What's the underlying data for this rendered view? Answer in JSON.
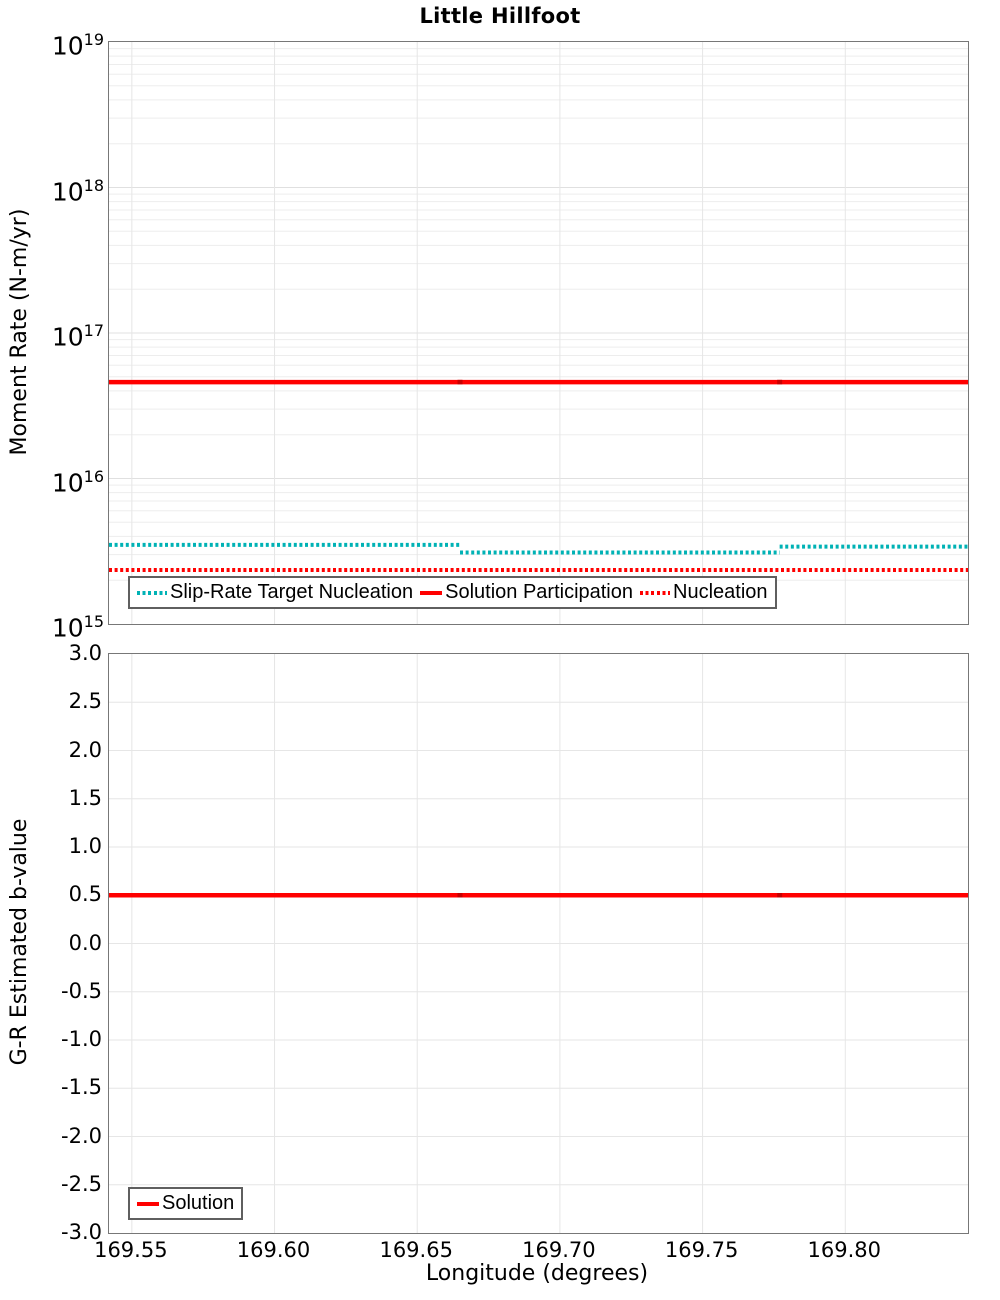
{
  "title": "Little Hillfoot",
  "colors": {
    "red": "#ff0000",
    "red_join_mark": "#c80000",
    "teal": "#00b2b5",
    "grid_minor": "#ededed",
    "grid_major": "#e0e0e0",
    "grid_vertical": "#e6e6e6",
    "axis_border": "#777777",
    "legend_border": "#5f5f5f"
  },
  "chart_data": [
    {
      "id": "moment-rate",
      "type": "line",
      "title": "Little Hillfoot",
      "ylabel": "Moment Rate (N-m/yr)",
      "yscale": "log",
      "ylim": [
        1000000000000000.0,
        1e+19
      ],
      "ytick_base": "10",
      "ytick_exponents": [
        19,
        18,
        17,
        16,
        15
      ],
      "xlim": [
        169.542,
        169.843
      ],
      "xticks": [
        169.55,
        169.6,
        169.65,
        169.7,
        169.75,
        169.8
      ],
      "grid": true,
      "legend_position": "bottom-left",
      "series": [
        {
          "name": "Slip-Rate Target Nucleation",
          "color": "#00b2b5",
          "style": "dotted",
          "segments": [
            {
              "x0": 169.542,
              "x1": 169.665,
              "y": 3500000000000000.0
            },
            {
              "x0": 169.665,
              "x1": 169.777,
              "y": 3100000000000000.0
            },
            {
              "x0": 169.777,
              "x1": 169.843,
              "y": 3400000000000000.0
            }
          ]
        },
        {
          "name": "Solution Participation",
          "color": "#ff0000",
          "style": "solid",
          "segments": [
            {
              "x0": 169.542,
              "x1": 169.843,
              "y": 4.6e+16
            }
          ],
          "joint_marks": [
            169.665,
            169.777
          ]
        },
        {
          "name": "Nucleation",
          "color": "#ff0000",
          "style": "dotted",
          "segments": [
            {
              "x0": 169.542,
              "x1": 169.843,
              "y": 2350000000000000.0
            }
          ]
        }
      ]
    },
    {
      "id": "b-value",
      "type": "line",
      "ylabel": "G-R Estimated b-value",
      "xlabel": "Longitude (degrees)",
      "yscale": "linear",
      "ylim": [
        -3.0,
        3.0
      ],
      "yticks": [
        3.0,
        2.5,
        2.0,
        1.5,
        1.0,
        0.5,
        0.0,
        -0.5,
        -1.0,
        -1.5,
        -2.0,
        -2.5,
        -3.0
      ],
      "ytick_labels": [
        "3.0",
        "2.5",
        "2.0",
        "1.5",
        "1.0",
        "0.5",
        "0.0",
        "-0.5",
        "-1.0",
        "-1.5",
        "-2.0",
        "-2.5",
        "-3.0"
      ],
      "xlim": [
        169.542,
        169.843
      ],
      "xticks": [
        169.55,
        169.6,
        169.65,
        169.7,
        169.75,
        169.8
      ],
      "xtick_labels": [
        "169.55",
        "169.60",
        "169.65",
        "169.70",
        "169.75",
        "169.80"
      ],
      "grid": true,
      "legend_position": "bottom-left",
      "series": [
        {
          "name": "Solution",
          "color": "#ff0000",
          "style": "solid",
          "segments": [
            {
              "x0": 169.542,
              "x1": 169.843,
              "y": 0.5
            }
          ],
          "joint_marks": [
            169.665,
            169.777
          ]
        }
      ]
    }
  ]
}
